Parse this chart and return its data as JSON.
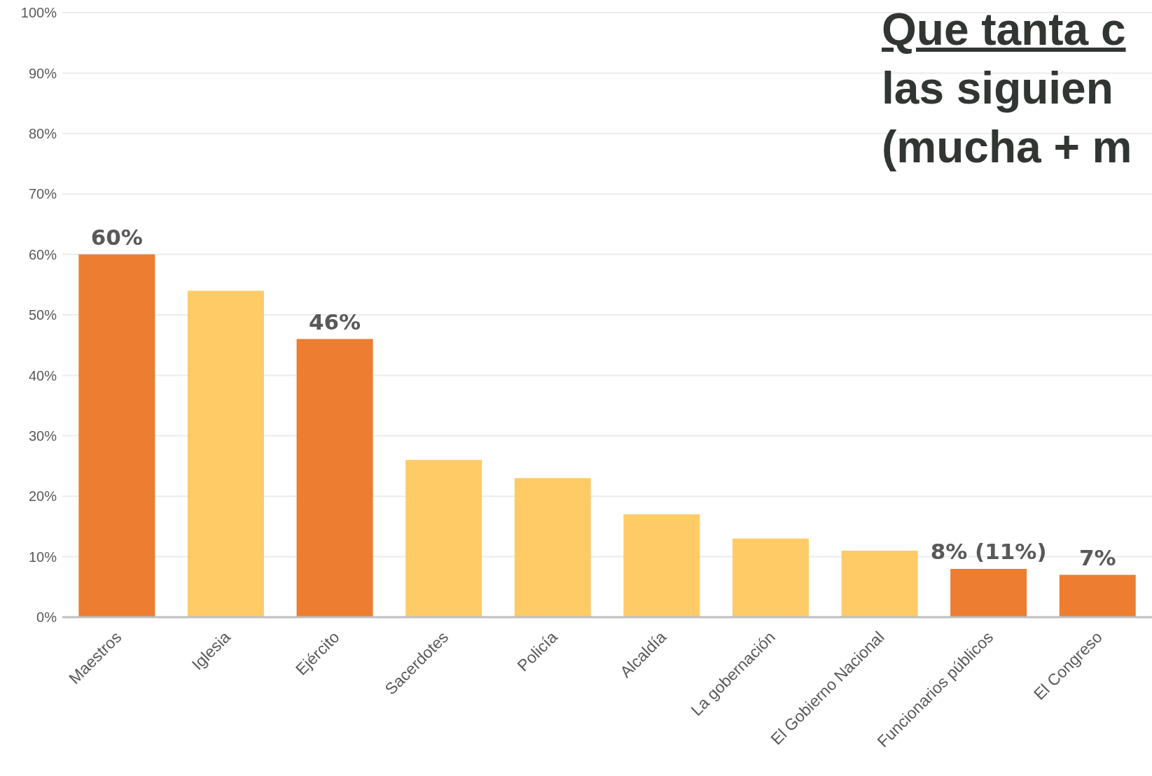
{
  "chart_data": {
    "type": "bar",
    "title": "Que tanta c\nlas siguien\n(mucha + m",
    "categories": [
      "Maestros",
      "Iglesia",
      "Ejército",
      "Sacerdotes",
      "Policía",
      "Alcaldía",
      "La gobernación",
      "El Gobierno Nacional",
      "Funcionarios públicos",
      "El Congreso"
    ],
    "values": [
      60,
      54,
      46,
      26,
      23,
      17,
      13,
      11,
      8,
      7
    ],
    "colors": [
      "#ed7d31",
      "#fecb67",
      "#ed7d31",
      "#fecb67",
      "#fecb67",
      "#fecb67",
      "#fecb67",
      "#fecb67",
      "#ed7d31",
      "#ed7d31"
    ],
    "value_labels": [
      "60%",
      null,
      "46%",
      null,
      null,
      null,
      null,
      null,
      "8% (11%)",
      "7%"
    ],
    "ylim": [
      0,
      100
    ],
    "yticks": [
      {
        "value": 0,
        "label": "0%"
      },
      {
        "value": 10,
        "label": "10%"
      },
      {
        "value": 20,
        "label": "20%"
      },
      {
        "value": 30,
        "label": "30%"
      },
      {
        "value": 40,
        "label": "40%"
      },
      {
        "value": 50,
        "label": "50%"
      },
      {
        "value": 60,
        "label": "60%"
      },
      {
        "value": 70,
        "label": "70%"
      },
      {
        "value": 80,
        "label": "80%"
      },
      {
        "value": 90,
        "label": "90%"
      },
      {
        "value": 100,
        "label": "100%"
      }
    ],
    "grid": "y",
    "legend": false
  }
}
